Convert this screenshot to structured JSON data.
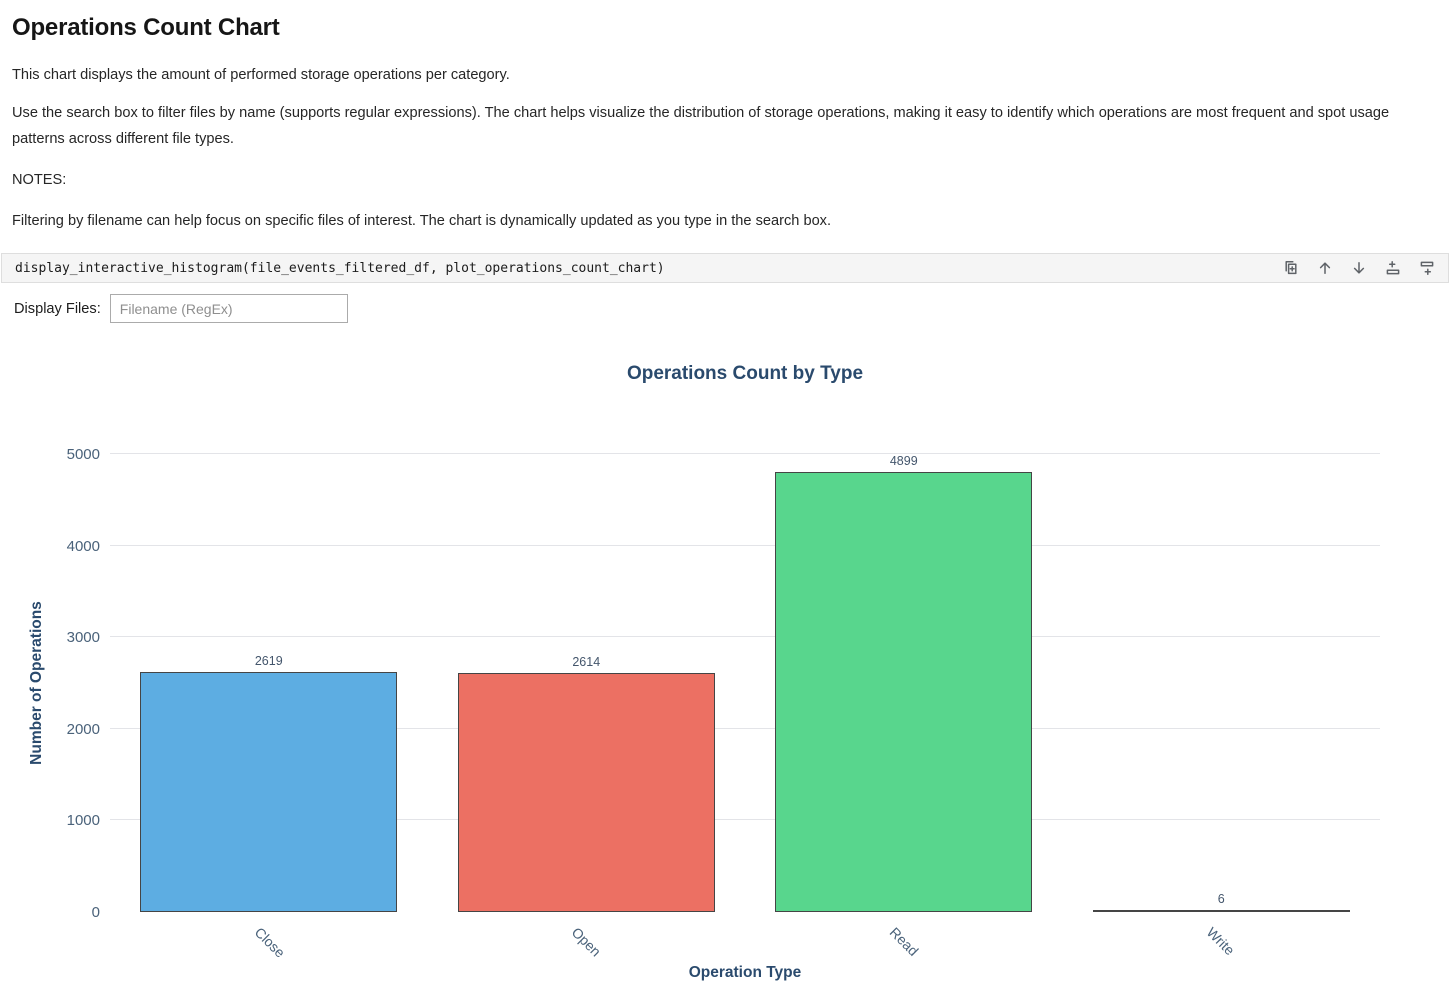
{
  "page": {
    "title": "Operations Count Chart",
    "description_1": "This chart displays the amount of performed storage operations per category.",
    "description_2": "Use the search box to filter files by name (supports regular expressions). The chart helps visualize the distribution of storage operations, making it easy to identify which operations are most frequent and spot usage patterns across different file types.",
    "notes_label": "NOTES:",
    "notes_text": "Filtering by filename can help focus on specific files of interest. The chart is dynamically updated as you type in the search box."
  },
  "code_cell": {
    "code": "display_interactive_histogram(file_events_filtered_df, plot_operations_count_chart)",
    "toolbar_icons": [
      "duplicate-cell-icon",
      "move-cell-up-icon",
      "move-cell-down-icon",
      "insert-cell-above-icon",
      "insert-cell-below-icon"
    ],
    "icon_color": "#5f6368"
  },
  "filter": {
    "label": "Display Files:",
    "placeholder": "Filename (RegEx)",
    "value": ""
  },
  "chart_data": {
    "type": "bar",
    "title": "Operations Count by Type",
    "xlabel": "Operation Type",
    "ylabel": "Number of Operations",
    "categories": [
      "Close",
      "Open",
      "Read",
      "Write"
    ],
    "values": [
      2619,
      2614,
      4899,
      6
    ],
    "bar_colors": [
      "#5dade2",
      "#ec7063",
      "#58d68d",
      "#5dade2"
    ],
    "bar_edge_color": "#454545",
    "ylim": [
      0,
      5000
    ],
    "yticks": [
      0,
      1000,
      2000,
      3000,
      4000,
      5000
    ],
    "grid": true,
    "legend": false,
    "title_color": "#2a4a6d",
    "tick_color": "#4a627a",
    "value_label_color": "#44566c",
    "x_tick_rotation_deg": 45
  }
}
